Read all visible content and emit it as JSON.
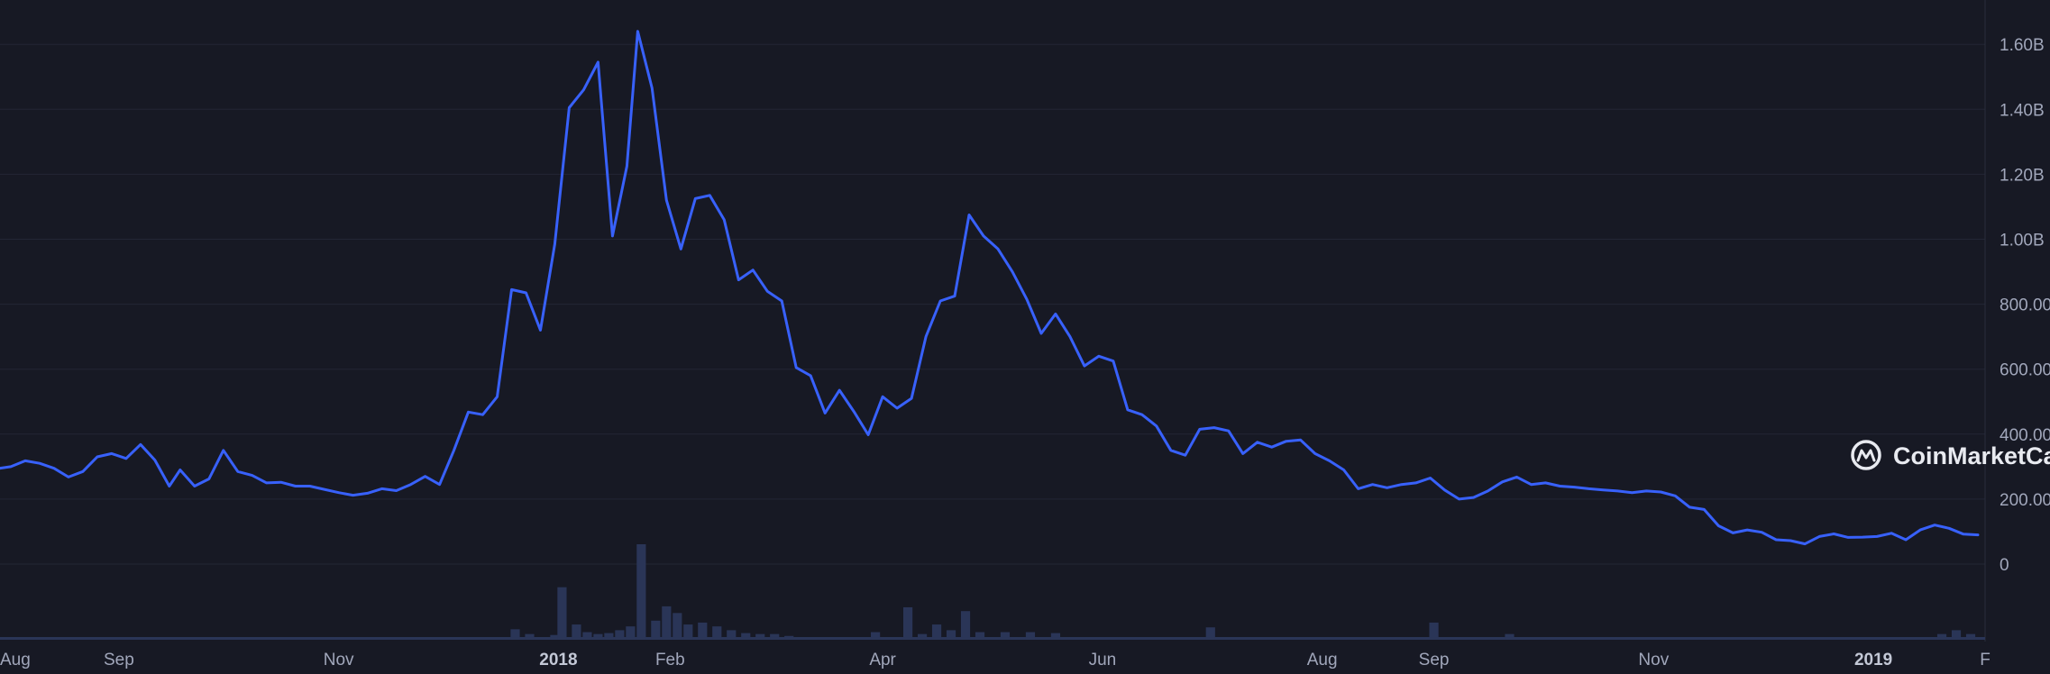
{
  "watermark": {
    "text": "CoinMarketCap",
    "icon": "coinmarketcap-logo-icon"
  },
  "colors": {
    "background": "#171924",
    "line": "#3861fb",
    "volume": "#2a3557",
    "grid": "#232635",
    "text": "#a1a7bb"
  },
  "chart_data": {
    "type": "line",
    "title": "",
    "xlabel": "",
    "ylabel": "",
    "y_axis_position": "right",
    "grid": true,
    "ylim": [
      -200,
      1700
    ],
    "y_ticks": [
      {
        "value": 0,
        "label": "0"
      },
      {
        "value": 200,
        "label": "200.00"
      },
      {
        "value": 400,
        "label": "400.00"
      },
      {
        "value": 600,
        "label": "600.00"
      },
      {
        "value": 800,
        "label": "800.00"
      },
      {
        "value": 1000,
        "label": "1.00B"
      },
      {
        "value": 1200,
        "label": "1.20B"
      },
      {
        "value": 1400,
        "label": "1.40B"
      },
      {
        "value": 1600,
        "label": "1.60B"
      }
    ],
    "x_range": [
      "2017-07-30",
      "2019-02-01"
    ],
    "x_ticks": [
      {
        "date": "2017-08-01",
        "label": "Aug",
        "major": false
      },
      {
        "date": "2017-09-01",
        "label": "Sep",
        "major": false
      },
      {
        "date": "2017-11-01",
        "label": "Nov",
        "major": false
      },
      {
        "date": "2018-01-01",
        "label": "2018",
        "major": true
      },
      {
        "date": "2018-02-01",
        "label": "Feb",
        "major": false
      },
      {
        "date": "2018-04-01",
        "label": "Apr",
        "major": false
      },
      {
        "date": "2018-06-01",
        "label": "Jun",
        "major": false
      },
      {
        "date": "2018-08-01",
        "label": "Aug",
        "major": false
      },
      {
        "date": "2018-09-01",
        "label": "Sep",
        "major": false
      },
      {
        "date": "2018-11-01",
        "label": "Nov",
        "major": false
      },
      {
        "date": "2019-01-01",
        "label": "2019",
        "major": true
      },
      {
        "date": "2019-02-01",
        "label": "F",
        "major": false
      }
    ],
    "series": [
      {
        "points": [
          [
            "2017-07-30",
            295
          ],
          [
            "2017-08-02",
            300
          ],
          [
            "2017-08-06",
            318
          ],
          [
            "2017-08-10",
            310
          ],
          [
            "2017-08-14",
            295
          ],
          [
            "2017-08-18",
            268
          ],
          [
            "2017-08-22",
            285
          ],
          [
            "2017-08-26",
            330
          ],
          [
            "2017-08-30",
            340
          ],
          [
            "2017-09-03",
            325
          ],
          [
            "2017-09-07",
            368
          ],
          [
            "2017-09-11",
            320
          ],
          [
            "2017-09-15",
            240
          ],
          [
            "2017-09-18",
            290
          ],
          [
            "2017-09-22",
            240
          ],
          [
            "2017-09-26",
            262
          ],
          [
            "2017-09-30",
            350
          ],
          [
            "2017-10-04",
            285
          ],
          [
            "2017-10-08",
            273
          ],
          [
            "2017-10-12",
            250
          ],
          [
            "2017-10-16",
            252
          ],
          [
            "2017-10-20",
            240
          ],
          [
            "2017-10-24",
            240
          ],
          [
            "2017-10-28",
            230
          ],
          [
            "2017-11-01",
            220
          ],
          [
            "2017-11-05",
            212
          ],
          [
            "2017-11-09",
            218
          ],
          [
            "2017-11-13",
            232
          ],
          [
            "2017-11-17",
            226
          ],
          [
            "2017-11-21",
            245
          ],
          [
            "2017-11-25",
            270
          ],
          [
            "2017-11-29",
            245
          ],
          [
            "2017-12-03",
            350
          ],
          [
            "2017-12-07",
            468
          ],
          [
            "2017-12-11",
            460
          ],
          [
            "2017-12-15",
            515
          ],
          [
            "2017-12-19",
            845
          ],
          [
            "2017-12-23",
            835
          ],
          [
            "2017-12-27",
            720
          ],
          [
            "2017-12-31",
            985
          ],
          [
            "2018-01-04",
            1405
          ],
          [
            "2018-01-08",
            1460
          ],
          [
            "2018-01-12",
            1545
          ],
          [
            "2018-01-16",
            1010
          ],
          [
            "2018-01-20",
            1225
          ],
          [
            "2018-01-23",
            1640
          ],
          [
            "2018-01-27",
            1465
          ],
          [
            "2018-01-31",
            1120
          ],
          [
            "2018-02-04",
            970
          ],
          [
            "2018-02-08",
            1125
          ],
          [
            "2018-02-12",
            1135
          ],
          [
            "2018-02-16",
            1060
          ],
          [
            "2018-02-20",
            875
          ],
          [
            "2018-02-24",
            905
          ],
          [
            "2018-02-28",
            840
          ],
          [
            "2018-03-04",
            810
          ],
          [
            "2018-03-08",
            605
          ],
          [
            "2018-03-12",
            580
          ],
          [
            "2018-03-16",
            465
          ],
          [
            "2018-03-20",
            535
          ],
          [
            "2018-03-24",
            470
          ],
          [
            "2018-03-28",
            398
          ],
          [
            "2018-04-01",
            515
          ],
          [
            "2018-04-05",
            480
          ],
          [
            "2018-04-09",
            510
          ],
          [
            "2018-04-13",
            700
          ],
          [
            "2018-04-17",
            810
          ],
          [
            "2018-04-21",
            825
          ],
          [
            "2018-04-25",
            1075
          ],
          [
            "2018-04-29",
            1010
          ],
          [
            "2018-05-03",
            970
          ],
          [
            "2018-05-07",
            900
          ],
          [
            "2018-05-11",
            815
          ],
          [
            "2018-05-15",
            710
          ],
          [
            "2018-05-19",
            770
          ],
          [
            "2018-05-23",
            700
          ],
          [
            "2018-05-27",
            610
          ],
          [
            "2018-05-31",
            640
          ],
          [
            "2018-06-04",
            625
          ],
          [
            "2018-06-08",
            475
          ],
          [
            "2018-06-12",
            460
          ],
          [
            "2018-06-16",
            425
          ],
          [
            "2018-06-20",
            350
          ],
          [
            "2018-06-24",
            335
          ],
          [
            "2018-06-28",
            415
          ],
          [
            "2018-07-02",
            420
          ],
          [
            "2018-07-06",
            410
          ],
          [
            "2018-07-10",
            340
          ],
          [
            "2018-07-14",
            375
          ],
          [
            "2018-07-18",
            360
          ],
          [
            "2018-07-22",
            378
          ],
          [
            "2018-07-26",
            382
          ],
          [
            "2018-07-30",
            340
          ],
          [
            "2018-08-03",
            318
          ],
          [
            "2018-08-07",
            290
          ],
          [
            "2018-08-11",
            232
          ],
          [
            "2018-08-15",
            245
          ],
          [
            "2018-08-19",
            235
          ],
          [
            "2018-08-23",
            245
          ],
          [
            "2018-08-27",
            250
          ],
          [
            "2018-08-31",
            265
          ],
          [
            "2018-09-04",
            228
          ],
          [
            "2018-09-08",
            200
          ],
          [
            "2018-09-12",
            205
          ],
          [
            "2018-09-16",
            225
          ],
          [
            "2018-09-20",
            253
          ],
          [
            "2018-09-24",
            268
          ],
          [
            "2018-09-28",
            245
          ],
          [
            "2018-10-02",
            250
          ],
          [
            "2018-10-06",
            240
          ],
          [
            "2018-10-10",
            237
          ],
          [
            "2018-10-14",
            232
          ],
          [
            "2018-10-18",
            228
          ],
          [
            "2018-10-22",
            225
          ],
          [
            "2018-10-26",
            220
          ],
          [
            "2018-10-30",
            225
          ],
          [
            "2018-11-03",
            222
          ],
          [
            "2018-11-07",
            210
          ],
          [
            "2018-11-11",
            175
          ],
          [
            "2018-11-15",
            168
          ],
          [
            "2018-11-19",
            118
          ],
          [
            "2018-11-23",
            96
          ],
          [
            "2018-11-27",
            105
          ],
          [
            "2018-12-01",
            98
          ],
          [
            "2018-12-05",
            75
          ],
          [
            "2018-12-09",
            72
          ],
          [
            "2018-12-13",
            62
          ],
          [
            "2018-12-17",
            85
          ],
          [
            "2018-12-21",
            93
          ],
          [
            "2018-12-25",
            82
          ],
          [
            "2018-12-29",
            83
          ],
          [
            "2019-01-02",
            85
          ],
          [
            "2019-01-06",
            95
          ],
          [
            "2019-01-10",
            75
          ],
          [
            "2019-01-14",
            105
          ],
          [
            "2019-01-18",
            120
          ],
          [
            "2019-01-22",
            110
          ],
          [
            "2019-01-26",
            92
          ],
          [
            "2019-01-30",
            90
          ]
        ]
      }
    ],
    "volume": [
      [
        "2017-12-20",
        0.11
      ],
      [
        "2017-12-24",
        0.06
      ],
      [
        "2017-12-31",
        0.05
      ],
      [
        "2018-01-02",
        0.55
      ],
      [
        "2018-01-06",
        0.16
      ],
      [
        "2018-01-09",
        0.08
      ],
      [
        "2018-01-12",
        0.06
      ],
      [
        "2018-01-15",
        0.07
      ],
      [
        "2018-01-18",
        0.1
      ],
      [
        "2018-01-21",
        0.14
      ],
      [
        "2018-01-24",
        1.0
      ],
      [
        "2018-01-28",
        0.2
      ],
      [
        "2018-01-31",
        0.35
      ],
      [
        "2018-02-03",
        0.28
      ],
      [
        "2018-02-06",
        0.16
      ],
      [
        "2018-02-10",
        0.18
      ],
      [
        "2018-02-14",
        0.14
      ],
      [
        "2018-02-18",
        0.1
      ],
      [
        "2018-02-22",
        0.07
      ],
      [
        "2018-02-26",
        0.06
      ],
      [
        "2018-03-02",
        0.06
      ],
      [
        "2018-03-06",
        0.04
      ],
      [
        "2018-03-30",
        0.08
      ],
      [
        "2018-04-08",
        0.34
      ],
      [
        "2018-04-12",
        0.06
      ],
      [
        "2018-04-16",
        0.16
      ],
      [
        "2018-04-20",
        0.1
      ],
      [
        "2018-04-24",
        0.3
      ],
      [
        "2018-04-28",
        0.08
      ],
      [
        "2018-05-05",
        0.08
      ],
      [
        "2018-05-12",
        0.08
      ],
      [
        "2018-05-19",
        0.07
      ],
      [
        "2018-07-01",
        0.13
      ],
      [
        "2018-09-01",
        0.18
      ],
      [
        "2018-09-22",
        0.06
      ],
      [
        "2019-01-20",
        0.06
      ],
      [
        "2019-01-24",
        0.1
      ],
      [
        "2019-01-28",
        0.06
      ]
    ]
  }
}
